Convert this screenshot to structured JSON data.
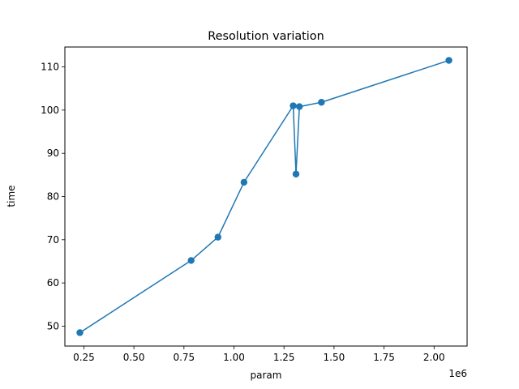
{
  "chart_data": {
    "type": "line",
    "title": "Resolution variation",
    "xlabel": "param",
    "ylabel": "time",
    "x_offset_label": "1e6",
    "xlim": [
      0.155,
      2.165
    ],
    "ylim": [
      45.4,
      114.6
    ],
    "xticks": [
      0.25,
      0.5,
      0.75,
      1.0,
      1.25,
      1.5,
      1.75,
      2.0
    ],
    "xtick_labels": [
      "0.25",
      "0.50",
      "0.75",
      "1.00",
      "1.25",
      "1.50",
      "1.75",
      "2.00"
    ],
    "yticks": [
      50,
      60,
      70,
      80,
      90,
      100,
      110
    ],
    "ytick_labels": [
      "50",
      "60",
      "70",
      "80",
      "90",
      "100",
      "110"
    ],
    "grid": false,
    "series": [
      {
        "color": "#1f77b4",
        "marker": "circle",
        "x": [
          0.23,
          0.786,
          0.92,
          1.05,
          1.296,
          1.31,
          1.327,
          1.437,
          2.074
        ],
        "y": [
          48.5,
          65.2,
          70.6,
          83.3,
          101.0,
          85.2,
          100.8,
          101.8,
          111.5
        ]
      }
    ]
  }
}
